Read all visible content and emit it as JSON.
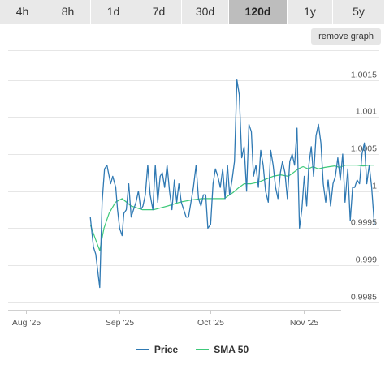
{
  "tabs": {
    "items": [
      "4h",
      "8h",
      "1d",
      "7d",
      "30d",
      "120d",
      "1y",
      "5y"
    ],
    "active": "120d"
  },
  "controls": {
    "remove_graph_label": "remove graph"
  },
  "colors": {
    "price": "#2f79b3",
    "sma": "#3ec97a",
    "grid": "#e6e6e6",
    "active_tab": "#bdbdbd"
  },
  "chart_data": {
    "type": "line",
    "grid": true,
    "legend_position": "bottom-center",
    "x_ticks": [
      {
        "label": "Aug '25",
        "day": 0
      },
      {
        "label": "Sep '25",
        "day": 31
      },
      {
        "label": "Oct '25",
        "day": 61
      },
      {
        "label": "Nov '25",
        "day": 92
      }
    ],
    "ylim": [
      0.9984,
      1.0019
    ],
    "y_ticks": [
      {
        "label": "0.9985",
        "value": 0.9985
      },
      {
        "label": "0.999",
        "value": 0.999
      },
      {
        "label": "0.9995",
        "value": 0.9995
      },
      {
        "label": "1",
        "value": 1.0
      },
      {
        "label": "1.0005",
        "value": 1.0005
      },
      {
        "label": "1.001",
        "value": 1.001
      },
      {
        "label": "1.0015",
        "value": 1.0015
      }
    ],
    "series": [
      {
        "name": "Price",
        "day": [
          21.3,
          22.3,
          23.1,
          24.4,
          25.2,
          26.0,
          26.8,
          28.0,
          28.7,
          29.7,
          30.3,
          31.0,
          31.8,
          32.4,
          33.2,
          34.0,
          34.8,
          35.6,
          36.4,
          37.2,
          38.0,
          38.7,
          39.5,
          40.3,
          41.1,
          42.0,
          42.8,
          43.6,
          44.4,
          45.1,
          45.9,
          46.7,
          47.5,
          48.3,
          49.1,
          49.9,
          50.6,
          51.4,
          52.2,
          53.0,
          53.8,
          54.6,
          55.4,
          56.3,
          57.1,
          57.9,
          58.7,
          59.5,
          60.2,
          61.1,
          61.9,
          62.7,
          63.5,
          64.3,
          65.1,
          65.9,
          66.7,
          67.4,
          68.2,
          69.0,
          69.8,
          70.6,
          71.4,
          72.2,
          73.0,
          73.8,
          74.6,
          75.3,
          76.1,
          76.9,
          77.7,
          78.5,
          79.3,
          80.2,
          81.0,
          81.8,
          82.6,
          83.4,
          84.2,
          84.9,
          85.7,
          86.5,
          87.3,
          88.1,
          88.9,
          89.7,
          90.5,
          91.3,
          92.1,
          92.9,
          93.6,
          94.4,
          95.2,
          96.0,
          96.8,
          97.6,
          98.4,
          99.2,
          100.0,
          100.8,
          101.6,
          102.4,
          103.2,
          104.0,
          104.8,
          105.6,
          106.5,
          107.3,
          108.1,
          108.8,
          109.6,
          110.4,
          111.2,
          112.0,
          112.8,
          113.6,
          114.4,
          115.3
        ],
        "values": [
          0.99965,
          0.99925,
          0.99915,
          0.9987,
          0.99985,
          1.0003,
          1.00035,
          1.0001,
          1.0002,
          1.00005,
          0.99975,
          0.9995,
          0.9994,
          0.9997,
          0.99975,
          1.0001,
          0.99965,
          0.99975,
          0.99985,
          1.0,
          0.99975,
          0.9998,
          0.99995,
          1.00035,
          0.99995,
          0.99975,
          1.00035,
          0.99985,
          1.0002,
          1.00025,
          1.00005,
          1.00035,
          1.0,
          0.99975,
          1.00015,
          0.99985,
          1.0001,
          0.99985,
          0.99975,
          0.99965,
          0.99965,
          0.99985,
          1.00005,
          1.00035,
          0.9999,
          0.9998,
          0.99995,
          0.99995,
          0.9995,
          0.99955,
          1.0001,
          1.0003,
          1.0002,
          1.00005,
          1.0003,
          0.9999,
          1.00035,
          0.99995,
          1.00015,
          1.0004,
          1.0015,
          1.0013,
          1.00045,
          1.0006,
          1.0,
          1.0009,
          1.0008,
          1.0002,
          1.00035,
          1.00005,
          1.00055,
          1.00035,
          1.0,
          0.99985,
          1.00055,
          1.00035,
          1.00005,
          0.9999,
          1.00025,
          1.0004,
          1.00025,
          0.9999,
          1.0004,
          1.0005,
          1.00035,
          1.00085,
          0.9995,
          0.99975,
          1.0002,
          0.9998,
          1.00035,
          1.0006,
          1.0002,
          1.00075,
          1.0009,
          1.00065,
          1.0001,
          0.99985,
          1.00015,
          0.9998,
          1.0001,
          1.0002,
          1.00045,
          1.00015,
          1.0005,
          0.99985,
          1.0003,
          0.9996,
          1.00005,
          1.00005,
          1.00015,
          1.0001,
          1.0005,
          1.00065,
          1.0001,
          1.00035,
          1.00005,
          0.99955,
          0.99945,
          0.9996,
          1.0002
        ],
        "color": "#2f79b3"
      },
      {
        "name": "SMA 50",
        "day": [
          21.3,
          23.0,
          24.4,
          25.8,
          27.5,
          29.6,
          31.8,
          34.8,
          38.5,
          42.3,
          46.9,
          50.8,
          54.6,
          58.2,
          61.9,
          65.6,
          68.5,
          70.5,
          72.2,
          74.5,
          76.9,
          79.3,
          81.8,
          84.2,
          86.8,
          88.5,
          90.1,
          91.7,
          93.4,
          95.0,
          96.7,
          98.8,
          100.5,
          102.2,
          103.8,
          105.7,
          107.3,
          109.6,
          111.6,
          113.6,
          115.3
        ],
        "values": [
          0.99955,
          0.99935,
          0.9992,
          0.9995,
          0.9997,
          0.99985,
          0.9999,
          0.9998,
          0.99975,
          0.99975,
          0.9998,
          0.99985,
          0.99988,
          0.9999,
          0.9999,
          0.9999,
          0.99998,
          1.00005,
          1.0001,
          1.0001,
          1.00012,
          1.00016,
          1.0002,
          1.00022,
          1.0002,
          1.00025,
          1.0003,
          1.00033,
          1.0003,
          1.00033,
          1.0003,
          1.00032,
          1.00033,
          1.00034,
          1.00032,
          1.00035,
          1.00035,
          1.00035,
          1.00034,
          1.00035,
          1.00035
        ],
        "color": "#3ec97a"
      }
    ]
  }
}
